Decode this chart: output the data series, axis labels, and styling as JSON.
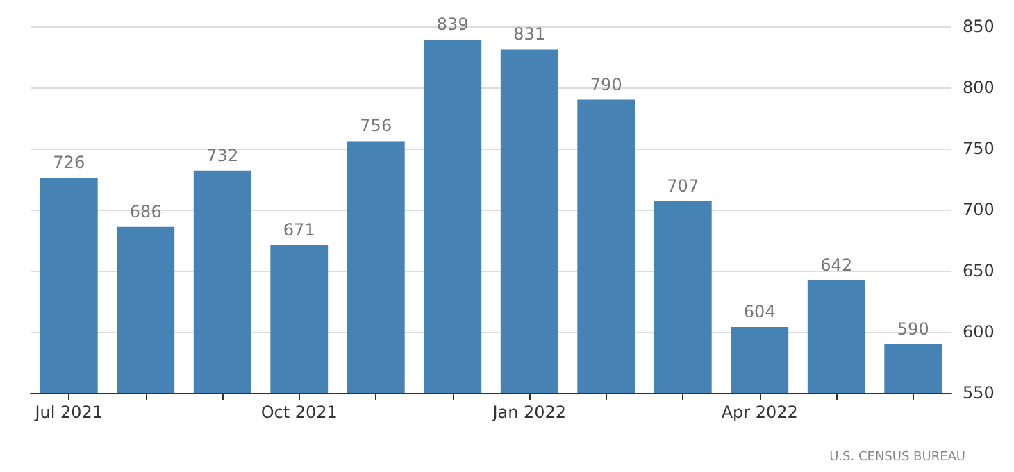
{
  "chart_data": {
    "type": "bar",
    "categories": [
      "Jul 2021",
      null,
      null,
      "Oct 2021",
      null,
      null,
      "Jan 2022",
      null,
      null,
      "Apr 2022",
      null,
      null
    ],
    "values": [
      726,
      686,
      732,
      671,
      756,
      839,
      831,
      790,
      707,
      604,
      642,
      590
    ],
    "color": "#4682b4",
    "ylim": [
      550,
      850
    ],
    "yticks": [
      550,
      600,
      650,
      700,
      750,
      800,
      850
    ],
    "grid": "y",
    "data_labels": true,
    "annotations": [
      "U.S. CENSUS BUREAU"
    ]
  }
}
